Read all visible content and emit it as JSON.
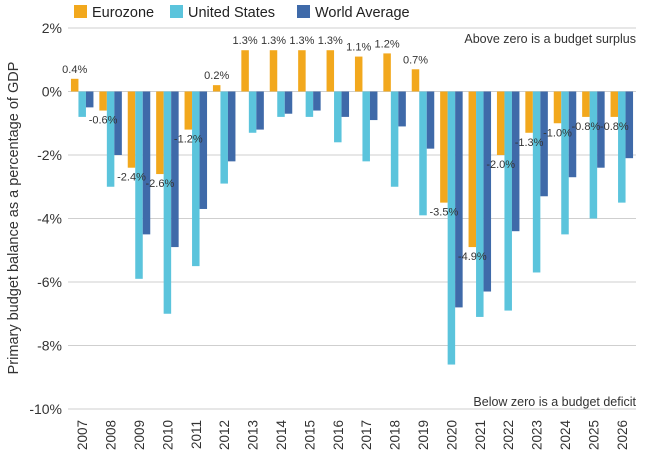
{
  "chart_data": {
    "type": "bar",
    "ylabel": "Primary budget balance as a percentage of GDP",
    "ylim": [
      -10,
      2
    ],
    "yticks": [
      2,
      0,
      -2,
      -4,
      -6,
      -8,
      -10
    ],
    "ytick_labels": [
      "2%",
      "0%",
      "-2%",
      "-4%",
      "-6%",
      "-8%",
      "-10%"
    ],
    "grid": true,
    "legend": "top-left",
    "categories": [
      "2007",
      "2008",
      "2009",
      "2010",
      "2011",
      "2012",
      "2013",
      "2014",
      "2015",
      "2016",
      "2017",
      "2018",
      "2019",
      "2020",
      "2021",
      "2022",
      "2023",
      "2024",
      "2025",
      "2026"
    ],
    "series": [
      {
        "name": "Eurozone",
        "color": "#f2a81d",
        "values": [
          0.4,
          -0.6,
          -2.4,
          -2.6,
          -1.2,
          0.2,
          1.3,
          1.3,
          1.3,
          1.3,
          1.1,
          1.2,
          0.7,
          -3.5,
          -4.9,
          -2.0,
          -1.3,
          -1.0,
          -0.8,
          -0.8
        ],
        "labels": [
          "0.4%",
          "-0.6%",
          "-2.4%",
          "-2.6%",
          "-1.2%",
          "0.2%",
          "1.3%",
          "1.3%",
          "1.3%",
          "1.3%",
          "1.1%",
          "1.2%",
          "0.7%",
          "-3.5%",
          "-4.9%",
          "-2.0%",
          "-1.3%",
          "-1.0%",
          "-0.8%",
          "-0.8%"
        ]
      },
      {
        "name": "United States",
        "color": "#5bc4dc",
        "values": [
          -0.8,
          -3.0,
          -5.9,
          -7.0,
          -5.5,
          -2.9,
          -1.3,
          -0.8,
          -0.8,
          -1.6,
          -2.2,
          -3.0,
          -3.9,
          -8.6,
          -7.1,
          -6.9,
          -5.7,
          -4.5,
          -4.0,
          -3.5
        ]
      },
      {
        "name": "World Average",
        "color": "#3f6aa9",
        "values": [
          -0.5,
          -2.0,
          -4.5,
          -4.9,
          -3.7,
          -2.2,
          -1.2,
          -0.7,
          -0.6,
          -0.8,
          -0.9,
          -1.1,
          -1.8,
          -6.8,
          -6.3,
          -4.4,
          -3.3,
          -2.7,
          -2.4,
          -2.1
        ]
      }
    ],
    "annotations": [
      {
        "text": "Above zero is a budget surplus",
        "position": "top-right"
      },
      {
        "text": "Below zero is a budget deficit",
        "position": "bottom-right"
      }
    ]
  }
}
